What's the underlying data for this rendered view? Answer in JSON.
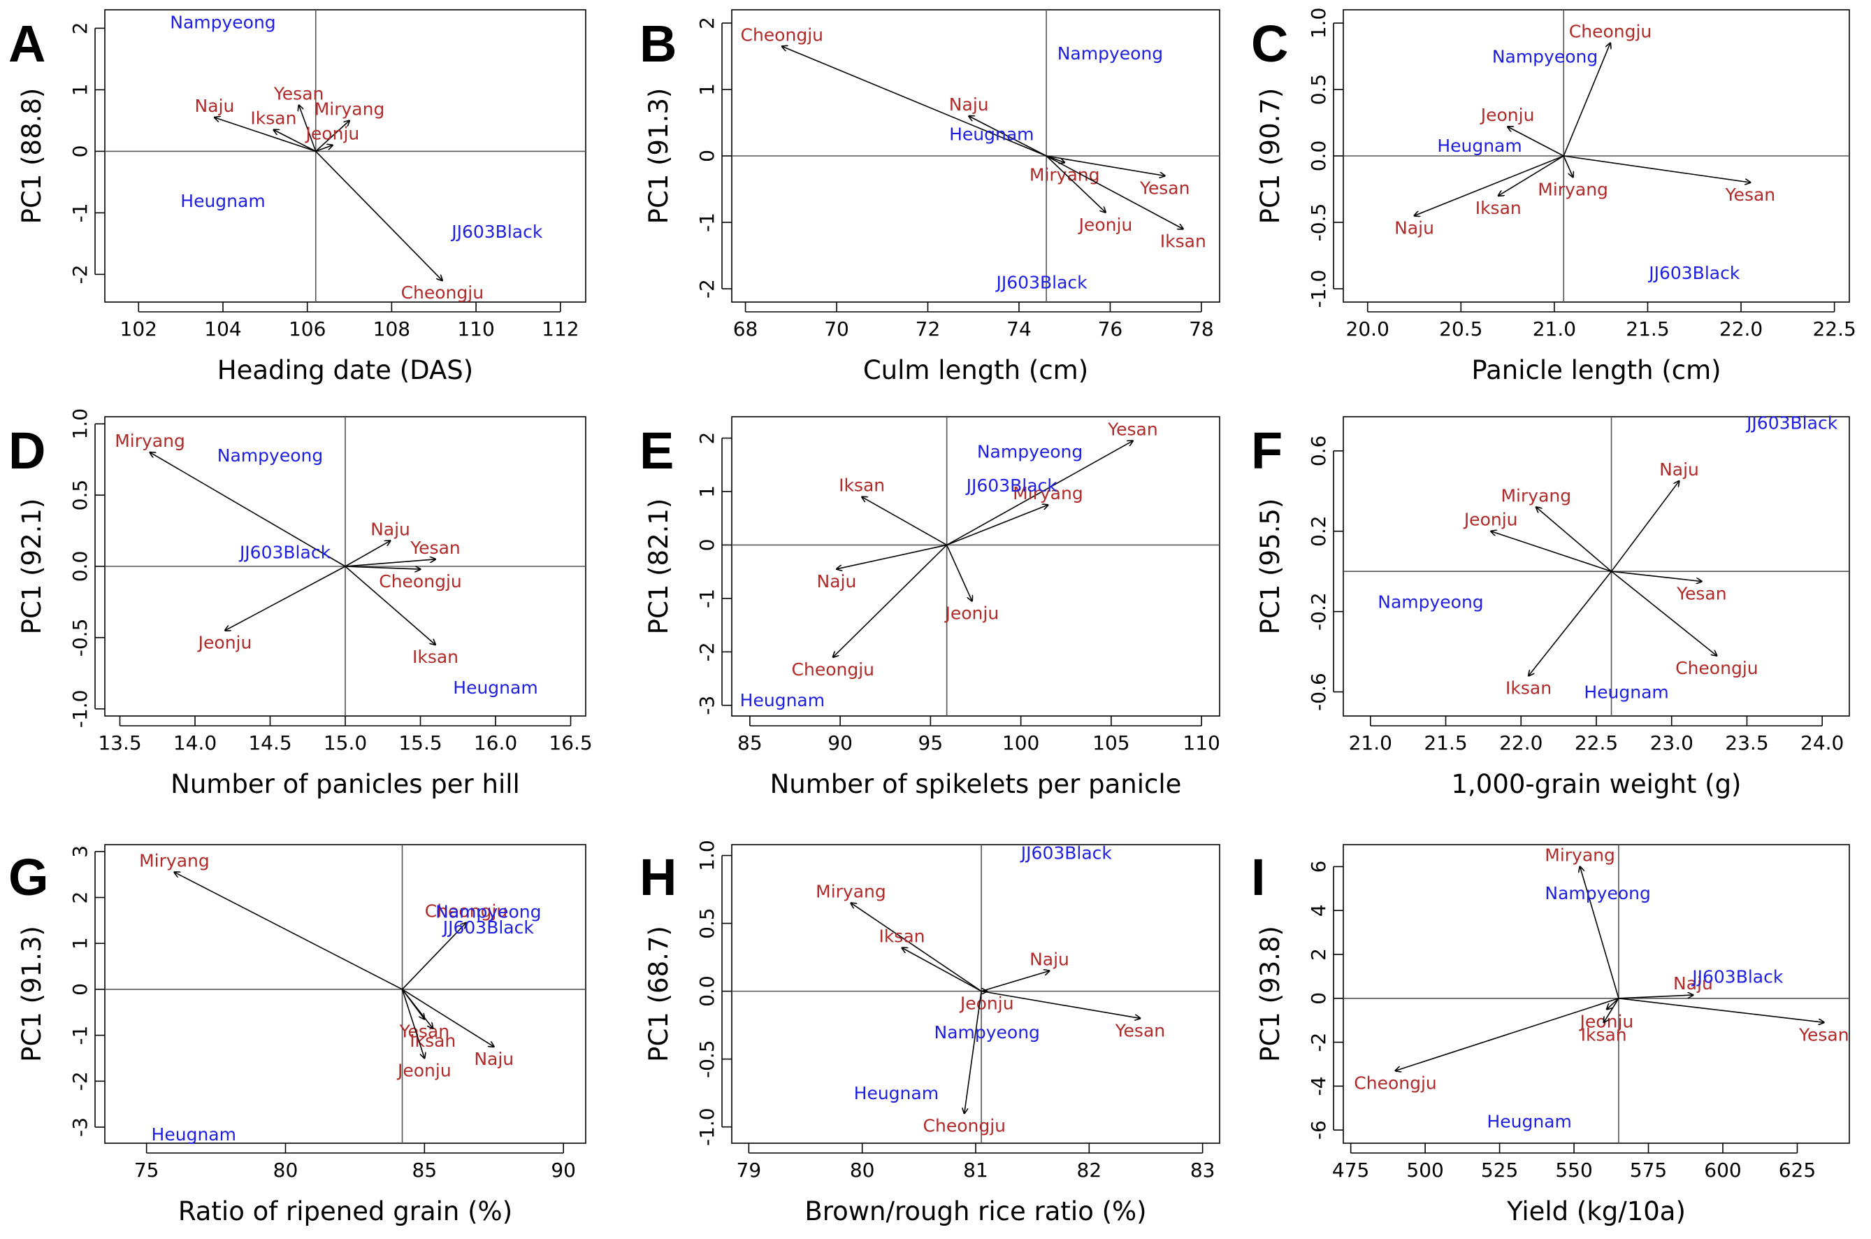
{
  "colors": {
    "genotype": "#1e1ee0",
    "environment": "#b02a2a",
    "vector": "#000000"
  },
  "chart_data": [
    {
      "type": "scatter",
      "panel": "A",
      "xlabel": "Heading date (DAS)",
      "ylabel": "PC1 (88.8)",
      "xlim": [
        101.2,
        112.6
      ],
      "ylim": [
        -2.45,
        2.3
      ],
      "xticks": [
        102,
        104,
        106,
        108,
        110,
        112
      ],
      "yticks": [
        -2,
        -1,
        0,
        1,
        2
      ],
      "origin": [
        106.2,
        0
      ],
      "genotypes": [
        {
          "name": "Nampyeong",
          "x": 104.0,
          "y": 2.1
        },
        {
          "name": "Heugnam",
          "x": 104.0,
          "y": -0.8
        },
        {
          "name": "JJ603Black",
          "x": 110.5,
          "y": -1.3
        }
      ],
      "environments": [
        {
          "name": "Naju",
          "x": 103.8,
          "y": 0.55
        },
        {
          "name": "Iksan",
          "x": 105.2,
          "y": 0.35
        },
        {
          "name": "Yesan",
          "x": 105.8,
          "y": 0.75
        },
        {
          "name": "Miryang",
          "x": 107.0,
          "y": 0.5
        },
        {
          "name": "Jeonju",
          "x": 106.6,
          "y": 0.1
        },
        {
          "name": "Cheongju",
          "x": 109.2,
          "y": -2.1
        }
      ]
    },
    {
      "type": "scatter",
      "panel": "B",
      "xlabel": "Culm length (cm)",
      "ylabel": "PC1 (91.3)",
      "xlim": [
        67.7,
        78.4
      ],
      "ylim": [
        -2.2,
        2.2
      ],
      "xticks": [
        68,
        70,
        72,
        74,
        76,
        78
      ],
      "yticks": [
        -2,
        -1,
        0,
        1,
        2
      ],
      "origin": [
        74.6,
        0
      ],
      "genotypes": [
        {
          "name": "Nampyeong",
          "x": 76.0,
          "y": 1.55
        },
        {
          "name": "Heugnam",
          "x": 73.4,
          "y": 0.33
        },
        {
          "name": "JJ603Black",
          "x": 74.5,
          "y": -1.9
        }
      ],
      "environments": [
        {
          "name": "Cheongju",
          "x": 68.8,
          "y": 1.65
        },
        {
          "name": "Naju",
          "x": 72.9,
          "y": 0.6
        },
        {
          "name": "Miryang",
          "x": 75.0,
          "y": -0.1
        },
        {
          "name": "Yesan",
          "x": 77.2,
          "y": -0.3
        },
        {
          "name": "Jeonju",
          "x": 75.9,
          "y": -0.85
        },
        {
          "name": "Iksan",
          "x": 77.6,
          "y": -1.1
        }
      ]
    },
    {
      "type": "scatter",
      "panel": "C",
      "xlabel": "Panicle length (cm)",
      "ylabel": "PC1 (90.7)",
      "xlim": [
        19.87,
        22.58
      ],
      "ylim": [
        -1.1,
        1.1
      ],
      "xticks": [
        20.0,
        20.5,
        21.0,
        21.5,
        22.0,
        22.5
      ],
      "yticks": [
        -1.0,
        -0.5,
        0.0,
        0.5,
        1.0
      ],
      "origin": [
        21.05,
        0
      ],
      "genotypes": [
        {
          "name": "Nampyeong",
          "x": 20.95,
          "y": 0.75
        },
        {
          "name": "Heugnam",
          "x": 20.6,
          "y": 0.08
        },
        {
          "name": "JJ603Black",
          "x": 21.75,
          "y": -0.88
        }
      ],
      "environments": [
        {
          "name": "Cheongju",
          "x": 21.3,
          "y": 0.85
        },
        {
          "name": "Jeonju",
          "x": 20.75,
          "y": 0.22
        },
        {
          "name": "Miryang",
          "x": 21.1,
          "y": -0.16
        },
        {
          "name": "Iksan",
          "x": 20.7,
          "y": -0.3
        },
        {
          "name": "Naju",
          "x": 20.25,
          "y": -0.45
        },
        {
          "name": "Yesan",
          "x": 22.05,
          "y": -0.2
        }
      ]
    },
    {
      "type": "scatter",
      "panel": "D",
      "xlabel": "Number of panicles per hill",
      "ylabel": "PC1 (92.1)",
      "xlim": [
        13.4,
        16.6
      ],
      "ylim": [
        -1.05,
        1.05
      ],
      "xticks": [
        13.5,
        14.0,
        14.5,
        15.0,
        15.5,
        16.0,
        16.5
      ],
      "yticks": [
        -1.0,
        -0.5,
        0.0,
        0.5,
        1.0
      ],
      "origin": [
        15.0,
        0
      ],
      "genotypes": [
        {
          "name": "Nampyeong",
          "x": 14.5,
          "y": 0.78
        },
        {
          "name": "JJ603Black",
          "x": 14.6,
          "y": 0.1
        },
        {
          "name": "Heugnam",
          "x": 16.0,
          "y": -0.85
        }
      ],
      "environments": [
        {
          "name": "Miryang",
          "x": 13.7,
          "y": 0.8
        },
        {
          "name": "Naju",
          "x": 15.3,
          "y": 0.18
        },
        {
          "name": "Yesan",
          "x": 15.6,
          "y": 0.05
        },
        {
          "name": "Cheongju",
          "x": 15.5,
          "y": -0.02
        },
        {
          "name": "Jeonju",
          "x": 14.2,
          "y": -0.45
        },
        {
          "name": "Iksan",
          "x": 15.6,
          "y": -0.55
        }
      ]
    },
    {
      "type": "scatter",
      "panel": "E",
      "xlabel": "Number of spikelets per panicle",
      "ylabel": "PC1 (82.1)",
      "xlim": [
        84.0,
        111.0
      ],
      "ylim": [
        -3.2,
        2.4
      ],
      "xticks": [
        85,
        90,
        95,
        100,
        105,
        110
      ],
      "yticks": [
        -3,
        -2,
        -1,
        0,
        1,
        2
      ],
      "origin": [
        95.9,
        0
      ],
      "genotypes": [
        {
          "name": "Nampyeong",
          "x": 100.5,
          "y": 1.75
        },
        {
          "name": "JJ603Black",
          "x": 99.5,
          "y": 1.12
        },
        {
          "name": "Heugnam",
          "x": 86.8,
          "y": -2.9
        }
      ],
      "environments": [
        {
          "name": "Yesan",
          "x": 106.2,
          "y": 1.95
        },
        {
          "name": "Iksan",
          "x": 91.2,
          "y": 0.9
        },
        {
          "name": "Miryang",
          "x": 101.5,
          "y": 0.75
        },
        {
          "name": "Naju",
          "x": 89.8,
          "y": -0.45
        },
        {
          "name": "Jeonju",
          "x": 97.3,
          "y": -1.05
        },
        {
          "name": "Cheongju",
          "x": 89.6,
          "y": -2.1
        }
      ]
    },
    {
      "type": "scatter",
      "panel": "F",
      "xlabel": "1,000-grain weight (g)",
      "ylabel": "PC1 (95.5)",
      "xlim": [
        20.82,
        24.18
      ],
      "ylim": [
        -0.72,
        0.77
      ],
      "xticks": [
        21.0,
        21.5,
        22.0,
        22.5,
        23.0,
        23.5,
        24.0
      ],
      "yticks": [
        -0.6,
        -0.2,
        0.2,
        0.6
      ],
      "origin": [
        22.6,
        0
      ],
      "genotypes": [
        {
          "name": "JJ603Black",
          "x": 23.8,
          "y": 0.74
        },
        {
          "name": "Nampyeong",
          "x": 21.4,
          "y": -0.15
        },
        {
          "name": "Heugnam",
          "x": 22.7,
          "y": -0.6
        }
      ],
      "environments": [
        {
          "name": "Naju",
          "x": 23.05,
          "y": 0.45
        },
        {
          "name": "Miryang",
          "x": 22.1,
          "y": 0.32
        },
        {
          "name": "Jeonju",
          "x": 21.8,
          "y": 0.2
        },
        {
          "name": "Yesan",
          "x": 23.2,
          "y": -0.05
        },
        {
          "name": "Cheongju",
          "x": 23.3,
          "y": -0.42
        },
        {
          "name": "Iksan",
          "x": 22.05,
          "y": -0.52
        }
      ]
    },
    {
      "type": "scatter",
      "panel": "G",
      "xlabel": "Ratio of ripened grain (%)",
      "ylabel": "PC1 (91.3)",
      "xlim": [
        73.5,
        90.8
      ],
      "ylim": [
        -3.35,
        3.15
      ],
      "xticks": [
        75,
        80,
        85,
        90
      ],
      "yticks": [
        -3,
        -2,
        -1,
        0,
        1,
        2,
        3
      ],
      "origin": [
        84.2,
        0
      ],
      "genotypes": [
        {
          "name": "Nampyeong",
          "x": 87.3,
          "y": 1.7
        },
        {
          "name": "JJ603Black",
          "x": 87.3,
          "y": 1.35
        },
        {
          "name": "Heugnam",
          "x": 76.7,
          "y": -3.15
        }
      ],
      "environments": [
        {
          "name": "Miryang",
          "x": 76.0,
          "y": 2.55
        },
        {
          "name": "Cheongju",
          "x": 86.5,
          "y": 1.45
        },
        {
          "name": "Yesan",
          "x": 85.0,
          "y": -0.65
        },
        {
          "name": "Iksan",
          "x": 85.3,
          "y": -0.85
        },
        {
          "name": "Naju",
          "x": 87.5,
          "y": -1.25
        },
        {
          "name": "Jeonju",
          "x": 85.0,
          "y": -1.5
        }
      ]
    },
    {
      "type": "scatter",
      "panel": "H",
      "xlabel": "Brown/rough rice ratio (%)",
      "ylabel": "PC1 (68.7)",
      "xlim": [
        78.85,
        83.15
      ],
      "ylim": [
        -1.12,
        1.08
      ],
      "xticks": [
        79,
        80,
        81,
        82,
        83
      ],
      "yticks": [
        -1.0,
        -0.5,
        0.0,
        0.5,
        1.0
      ],
      "origin": [
        81.05,
        0
      ],
      "genotypes": [
        {
          "name": "JJ603Black",
          "x": 81.8,
          "y": 1.02
        },
        {
          "name": "Nampyeong",
          "x": 81.1,
          "y": -0.3
        },
        {
          "name": "Heugnam",
          "x": 80.3,
          "y": -0.75
        }
      ],
      "environments": [
        {
          "name": "Miryang",
          "x": 79.9,
          "y": 0.65
        },
        {
          "name": "Iksan",
          "x": 80.35,
          "y": 0.32
        },
        {
          "name": "Naju",
          "x": 81.65,
          "y": 0.15
        },
        {
          "name": "Jeonju",
          "x": 81.1,
          "y": 0.0
        },
        {
          "name": "Yesan",
          "x": 82.45,
          "y": -0.2
        },
        {
          "name": "Cheongju",
          "x": 80.9,
          "y": -0.9
        }
      ]
    },
    {
      "type": "scatter",
      "panel": "I",
      "xlabel": "Yield (kg/10a)",
      "ylabel": "PC1 (93.8)",
      "xlim": [
        472.5,
        642.5
      ],
      "ylim": [
        -6.6,
        7.0
      ],
      "xticks": [
        475,
        500,
        525,
        550,
        575,
        600,
        625
      ],
      "yticks": [
        -6,
        -4,
        -2,
        0,
        2,
        4,
        6
      ],
      "origin": [
        565,
        0
      ],
      "genotypes": [
        {
          "name": "Nampyeong",
          "x": 558,
          "y": 4.8
        },
        {
          "name": "JJ603Black",
          "x": 605,
          "y": 1.0
        },
        {
          "name": "Heugnam",
          "x": 535,
          "y": -5.6
        }
      ],
      "environments": [
        {
          "name": "Miryang",
          "x": 552,
          "y": 6.0
        },
        {
          "name": "Naju",
          "x": 590,
          "y": 0.15
        },
        {
          "name": "Jeonju",
          "x": 561,
          "y": -0.5
        },
        {
          "name": "Iksan",
          "x": 560,
          "y": -1.1
        },
        {
          "name": "Yesan",
          "x": 634,
          "y": -1.1
        },
        {
          "name": "Cheongju",
          "x": 490,
          "y": -3.3
        }
      ]
    }
  ]
}
